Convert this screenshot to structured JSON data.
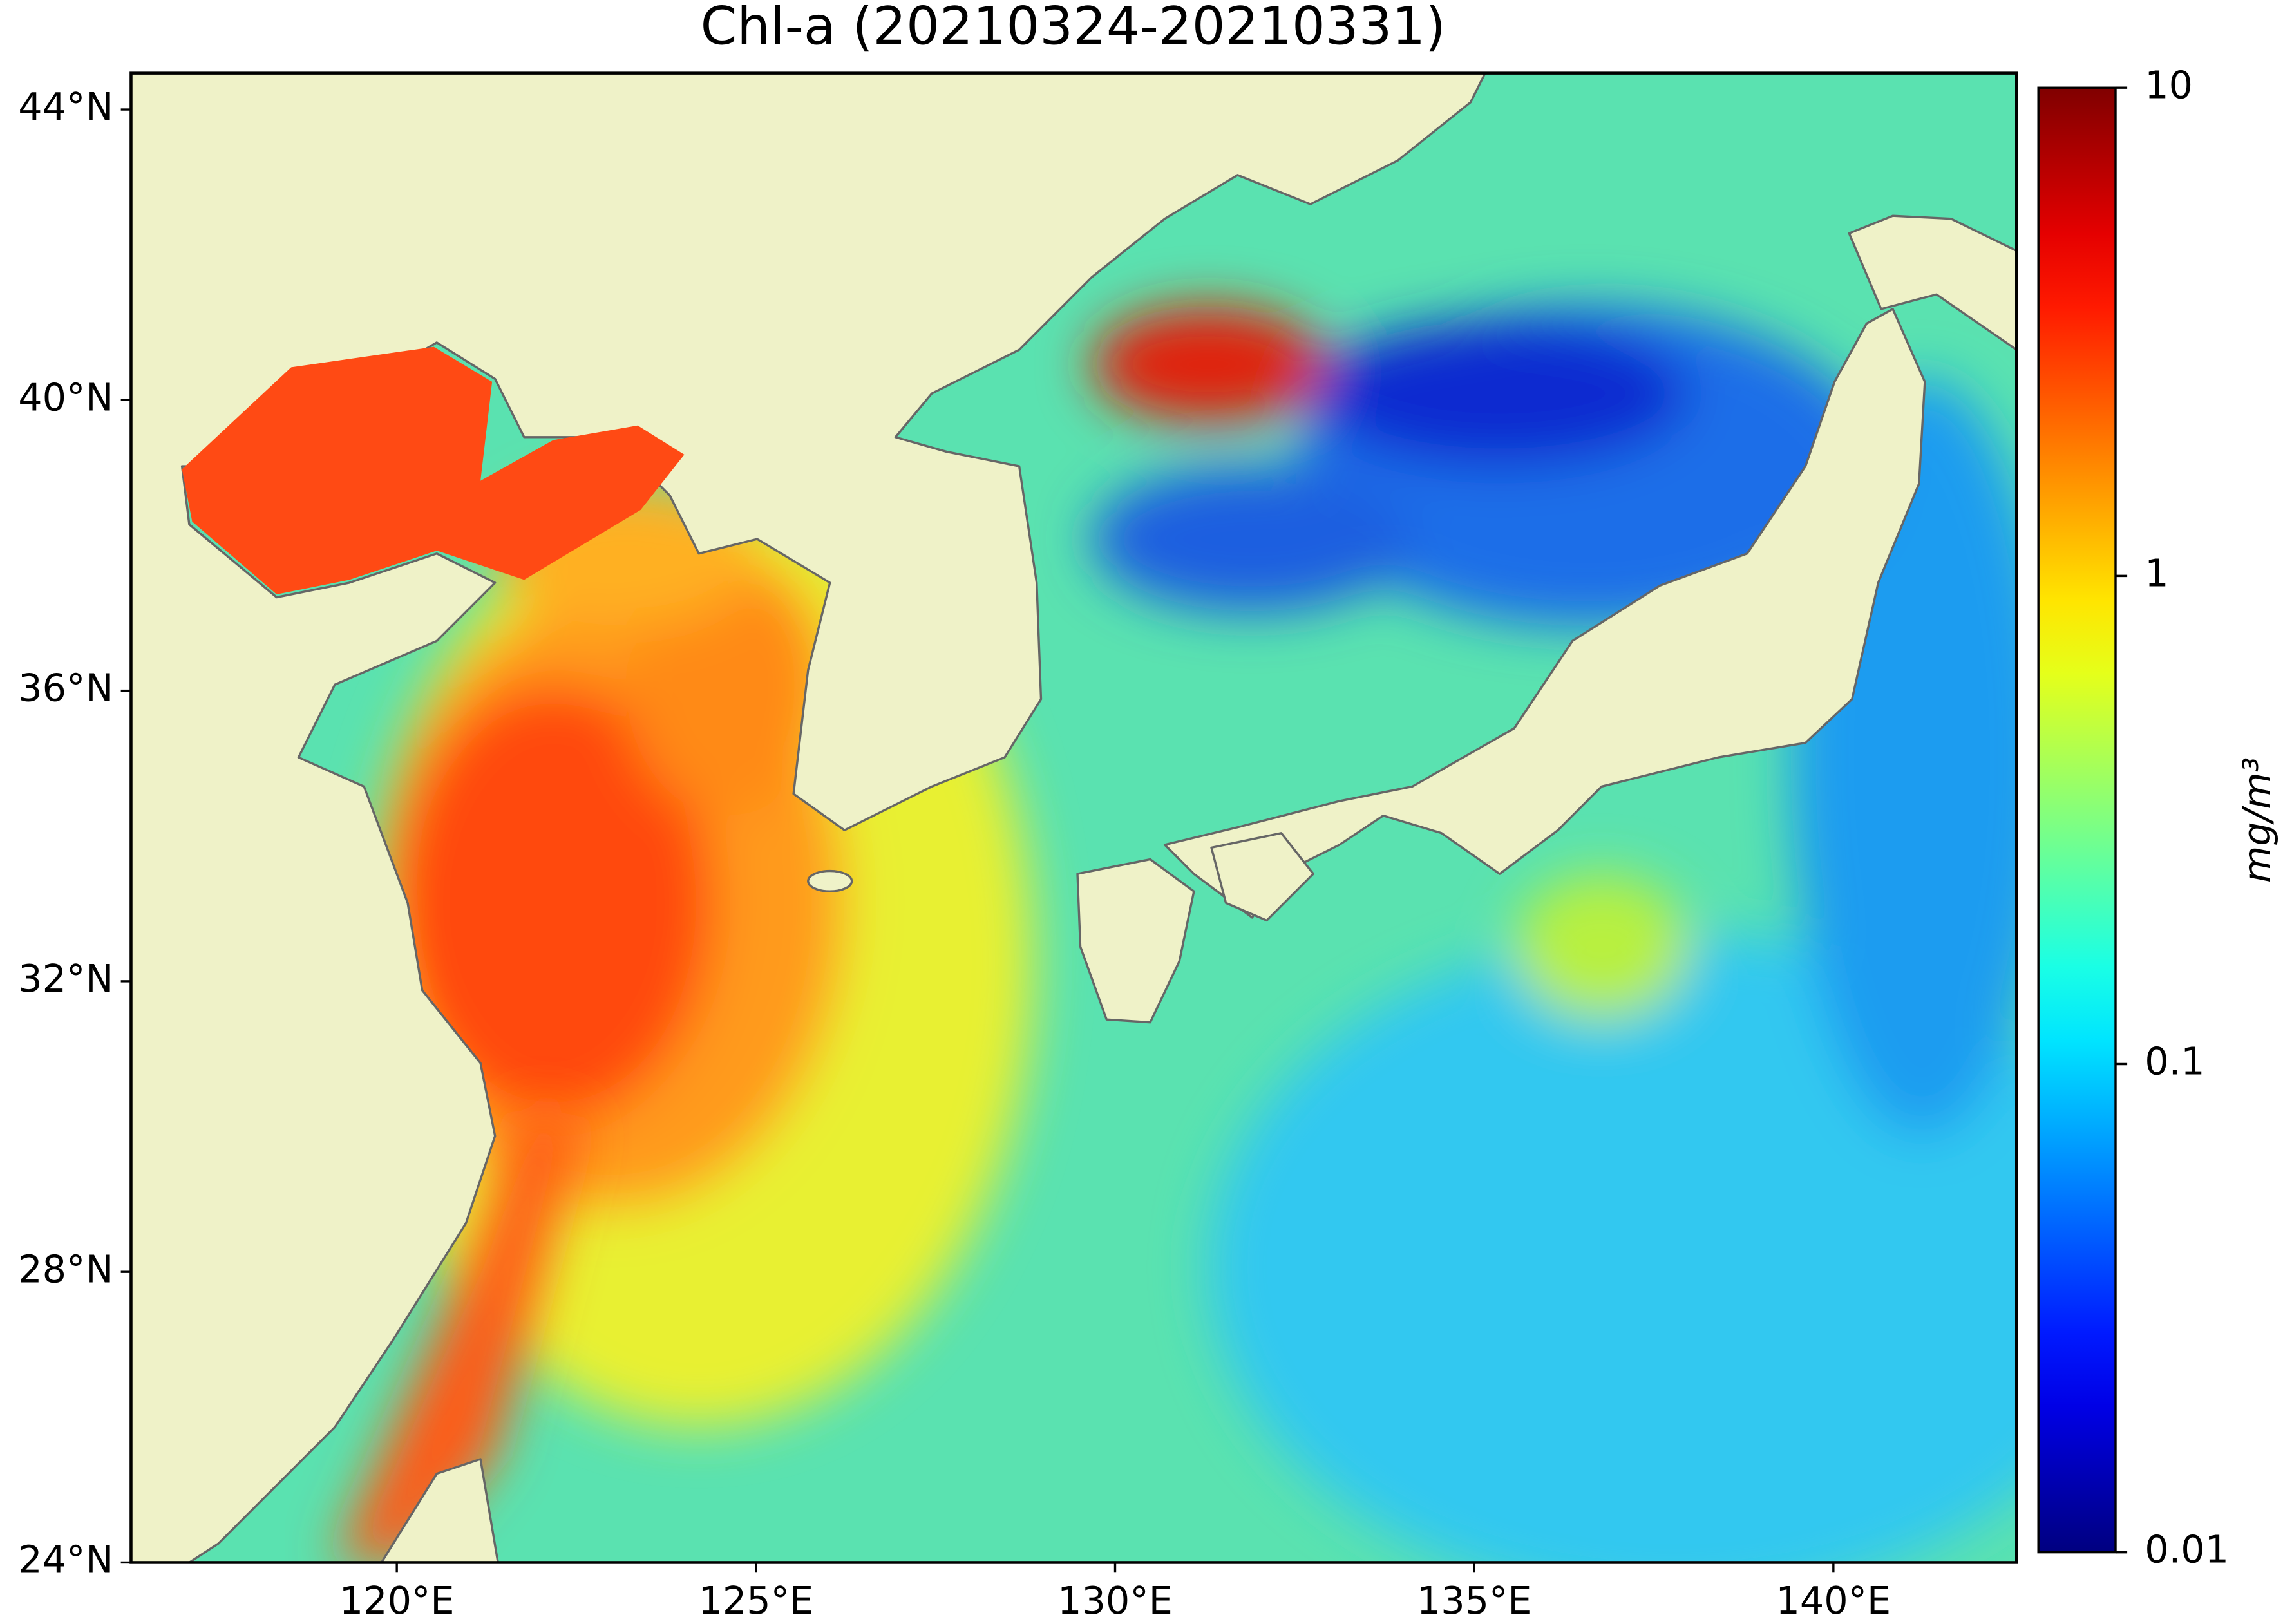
{
  "chart_data": {
    "type": "map",
    "title": "Chl-a (20210324-20210331)",
    "xlim": [
      116.3,
      142.55
    ],
    "ylim": [
      24,
      44.5
    ],
    "xticks": [
      {
        "value": 120,
        "label": "120°E"
      },
      {
        "value": 125,
        "label": "125°E"
      },
      {
        "value": 130,
        "label": "130°E"
      },
      {
        "value": 135,
        "label": "135°E"
      },
      {
        "value": 140,
        "label": "140°E"
      }
    ],
    "yticks": [
      {
        "value": 24,
        "label": "24°N"
      },
      {
        "value": 28,
        "label": "28°N"
      },
      {
        "value": 32,
        "label": "32°N"
      },
      {
        "value": 36,
        "label": "36°N"
      },
      {
        "value": 40,
        "label": "40°N"
      },
      {
        "value": 44,
        "label": "44°N"
      }
    ],
    "colorbar": {
      "label": "mg/m³",
      "colormap": "jet",
      "log": true,
      "clim": [
        0.01,
        10
      ],
      "ticks": [
        0.01,
        0.1,
        1,
        10
      ]
    }
  }
}
